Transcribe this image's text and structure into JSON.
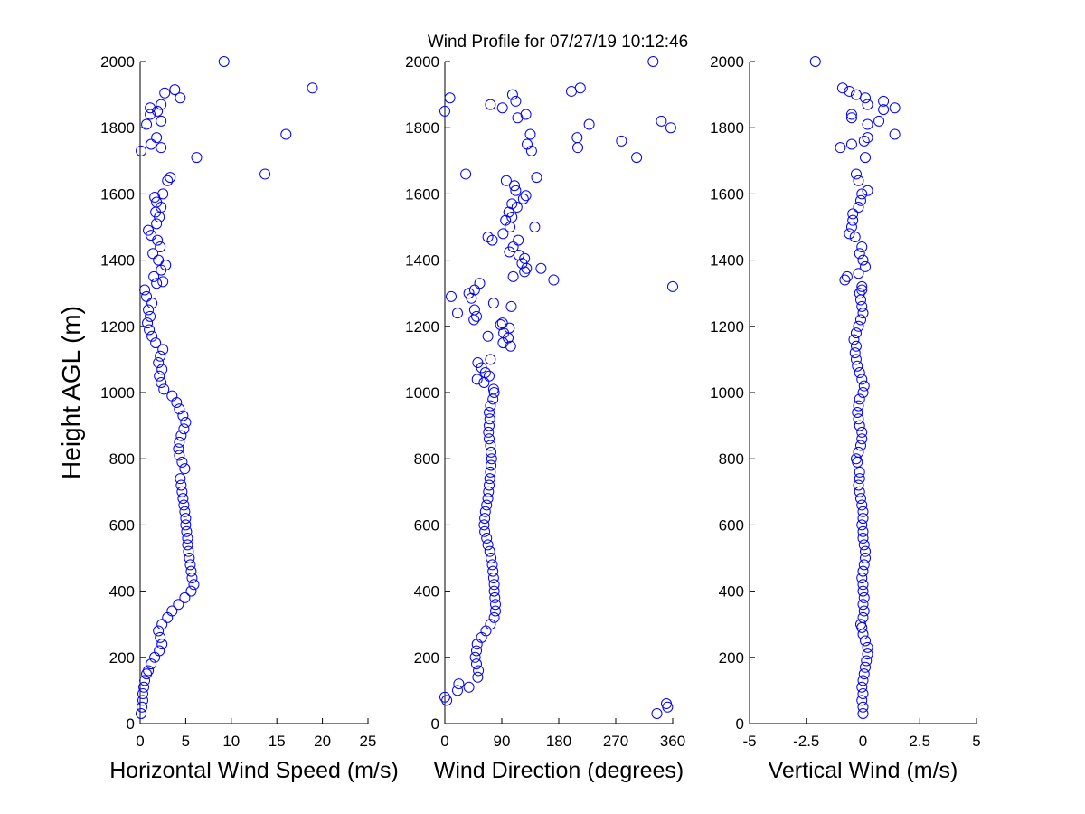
{
  "title": "Wind Profile for  07/27/19 10:12:46",
  "ylabel": "Height AGL (m)",
  "marker_color": "#0000ff",
  "chart_data": [
    {
      "type": "scatter",
      "xlabel": "Horizontal Wind Speed (m/s)",
      "ylabel": "Height AGL (m)",
      "xlim": [
        0,
        25
      ],
      "ylim": [
        0,
        2000
      ],
      "xticks": [
        "0",
        "5",
        "10",
        "15",
        "20",
        "25"
      ],
      "yticks": [
        "0",
        "200",
        "400",
        "600",
        "800",
        "1000",
        "1200",
        "1400",
        "1600",
        "1800",
        "2000"
      ],
      "grid": false,
      "points": [
        [
          0.1,
          30
        ],
        [
          0.2,
          50
        ],
        [
          0.3,
          70
        ],
        [
          0.3,
          90
        ],
        [
          0.4,
          110
        ],
        [
          0.5,
          130
        ],
        [
          0.7,
          150
        ],
        [
          0.9,
          160
        ],
        [
          1.2,
          180
        ],
        [
          1.6,
          200
        ],
        [
          2.1,
          220
        ],
        [
          2.4,
          240
        ],
        [
          2.2,
          260
        ],
        [
          2.0,
          280
        ],
        [
          2.4,
          300
        ],
        [
          3.0,
          320
        ],
        [
          3.5,
          340
        ],
        [
          4.2,
          360
        ],
        [
          4.9,
          380
        ],
        [
          5.6,
          400
        ],
        [
          5.9,
          420
        ],
        [
          5.7,
          440
        ],
        [
          5.6,
          460
        ],
        [
          5.5,
          480
        ],
        [
          5.4,
          500
        ],
        [
          5.3,
          520
        ],
        [
          5.2,
          540
        ],
        [
          5.2,
          560
        ],
        [
          5.1,
          580
        ],
        [
          5.0,
          600
        ],
        [
          5.0,
          620
        ],
        [
          4.9,
          640
        ],
        [
          4.8,
          660
        ],
        [
          4.7,
          680
        ],
        [
          4.6,
          700
        ],
        [
          4.5,
          720
        ],
        [
          4.4,
          740
        ],
        [
          4.9,
          770
        ],
        [
          4.6,
          790
        ],
        [
          4.3,
          810
        ],
        [
          4.2,
          830
        ],
        [
          4.3,
          850
        ],
        [
          4.5,
          870
        ],
        [
          4.8,
          890
        ],
        [
          5.0,
          910
        ],
        [
          4.7,
          930
        ],
        [
          4.3,
          950
        ],
        [
          4.0,
          970
        ],
        [
          3.5,
          990
        ],
        [
          2.6,
          1010
        ],
        [
          2.3,
          1030
        ],
        [
          2.1,
          1050
        ],
        [
          2.4,
          1070
        ],
        [
          2.0,
          1090
        ],
        [
          2.2,
          1110
        ],
        [
          2.5,
          1130
        ],
        [
          1.7,
          1150
        ],
        [
          1.3,
          1170
        ],
        [
          1.0,
          1190
        ],
        [
          0.8,
          1210
        ],
        [
          1.1,
          1230
        ],
        [
          0.9,
          1250
        ],
        [
          1.3,
          1270
        ],
        [
          0.7,
          1290
        ],
        [
          0.5,
          1310
        ],
        [
          1.8,
          1330
        ],
        [
          2.5,
          1335
        ],
        [
          1.5,
          1350
        ],
        [
          2.3,
          1370
        ],
        [
          2.8,
          1385
        ],
        [
          2.0,
          1400
        ],
        [
          1.4,
          1420
        ],
        [
          2.2,
          1440
        ],
        [
          1.9,
          1460
        ],
        [
          1.2,
          1475
        ],
        [
          0.9,
          1490
        ],
        [
          1.8,
          1510
        ],
        [
          2.1,
          1530
        ],
        [
          1.7,
          1545
        ],
        [
          2.3,
          1560
        ],
        [
          1.8,
          1575
        ],
        [
          1.6,
          1590
        ],
        [
          2.5,
          1600
        ],
        [
          3.0,
          1640
        ],
        [
          3.3,
          1650
        ],
        [
          13.7,
          1660
        ],
        [
          6.2,
          1710
        ],
        [
          0.1,
          1730
        ],
        [
          2.3,
          1740
        ],
        [
          1.2,
          1750
        ],
        [
          1.8,
          1770
        ],
        [
          16.0,
          1780
        ],
        [
          0.7,
          1810
        ],
        [
          2.3,
          1820
        ],
        [
          1.1,
          1840
        ],
        [
          1.9,
          1850
        ],
        [
          1.1,
          1860
        ],
        [
          2.3,
          1870
        ],
        [
          4.4,
          1890
        ],
        [
          2.7,
          1905
        ],
        [
          3.8,
          1915
        ],
        [
          18.9,
          1920
        ],
        [
          9.2,
          2000
        ]
      ]
    },
    {
      "type": "scatter",
      "xlabel": "Wind Direction (degrees)",
      "ylabel": "",
      "xlim": [
        0,
        360
      ],
      "ylim": [
        0,
        2000
      ],
      "xticks": [
        "0",
        "90",
        "180",
        "270",
        "360"
      ],
      "yticks": [
        "0",
        "200",
        "400",
        "600",
        "800",
        "1000",
        "1200",
        "1400",
        "1600",
        "1800",
        "2000"
      ],
      "grid": false,
      "points": [
        [
          335,
          30
        ],
        [
          352,
          50
        ],
        [
          350,
          60
        ],
        [
          3,
          70
        ],
        [
          0,
          80
        ],
        [
          20,
          100
        ],
        [
          38,
          110
        ],
        [
          22,
          120
        ],
        [
          52,
          140
        ],
        [
          53,
          160
        ],
        [
          50,
          180
        ],
        [
          48,
          200
        ],
        [
          50,
          220
        ],
        [
          51,
          240
        ],
        [
          58,
          260
        ],
        [
          65,
          280
        ],
        [
          72,
          300
        ],
        [
          78,
          320
        ],
        [
          80,
          340
        ],
        [
          80,
          360
        ],
        [
          79,
          380
        ],
        [
          78,
          400
        ],
        [
          78,
          420
        ],
        [
          77,
          440
        ],
        [
          76,
          460
        ],
        [
          75,
          480
        ],
        [
          73,
          500
        ],
        [
          71,
          520
        ],
        [
          68,
          540
        ],
        [
          66,
          560
        ],
        [
          63,
          580
        ],
        [
          62,
          600
        ],
        [
          63,
          620
        ],
        [
          64,
          640
        ],
        [
          66,
          660
        ],
        [
          68,
          680
        ],
        [
          69,
          700
        ],
        [
          70,
          720
        ],
        [
          71,
          740
        ],
        [
          72,
          760
        ],
        [
          73,
          780
        ],
        [
          74,
          800
        ],
        [
          73,
          820
        ],
        [
          72,
          840
        ],
        [
          70,
          860
        ],
        [
          69,
          880
        ],
        [
          70,
          900
        ],
        [
          71,
          920
        ],
        [
          70,
          940
        ],
        [
          72,
          960
        ],
        [
          76,
          980
        ],
        [
          78,
          1000
        ],
        [
          77,
          1010
        ],
        [
          62,
          1030
        ],
        [
          51,
          1040
        ],
        [
          70,
          1050
        ],
        [
          64,
          1060
        ],
        [
          58,
          1075
        ],
        [
          52,
          1090
        ],
        [
          72,
          1100
        ],
        [
          104,
          1140
        ],
        [
          92,
          1150
        ],
        [
          100,
          1165
        ],
        [
          68,
          1170
        ],
        [
          93,
          1180
        ],
        [
          102,
          1195
        ],
        [
          88,
          1205
        ],
        [
          91,
          1210
        ],
        [
          46,
          1220
        ],
        [
          50,
          1230
        ],
        [
          20,
          1240
        ],
        [
          47,
          1250
        ],
        [
          105,
          1260
        ],
        [
          77,
          1270
        ],
        [
          42,
          1285
        ],
        [
          10,
          1290
        ],
        [
          38,
          1300
        ],
        [
          47,
          1310
        ],
        [
          55,
          1330
        ],
        [
          360,
          1320
        ],
        [
          172,
          1340
        ],
        [
          108,
          1350
        ],
        [
          126,
          1365
        ],
        [
          129,
          1375
        ],
        [
          152,
          1375
        ],
        [
          122,
          1390
        ],
        [
          126,
          1405
        ],
        [
          117,
          1415
        ],
        [
          102,
          1425
        ],
        [
          108,
          1440
        ],
        [
          75,
          1460
        ],
        [
          68,
          1470
        ],
        [
          116,
          1460
        ],
        [
          92,
          1480
        ],
        [
          103,
          1500
        ],
        [
          142,
          1500
        ],
        [
          96,
          1520
        ],
        [
          106,
          1530
        ],
        [
          101,
          1545
        ],
        [
          114,
          1560
        ],
        [
          106,
          1570
        ],
        [
          124,
          1585
        ],
        [
          128,
          1595
        ],
        [
          112,
          1610
        ],
        [
          110,
          1625
        ],
        [
          97,
          1640
        ],
        [
          145,
          1650
        ],
        [
          33,
          1660
        ],
        [
          303,
          1710
        ],
        [
          210,
          1740
        ],
        [
          137,
          1730
        ],
        [
          130,
          1750
        ],
        [
          209,
          1770
        ],
        [
          279,
          1760
        ],
        [
          135,
          1780
        ],
        [
          357,
          1800
        ],
        [
          228,
          1810
        ],
        [
          342,
          1820
        ],
        [
          115,
          1830
        ],
        [
          0,
          1850
        ],
        [
          128,
          1840
        ],
        [
          91,
          1860
        ],
        [
          72,
          1870
        ],
        [
          112,
          1880
        ],
        [
          8,
          1890
        ],
        [
          107,
          1900
        ],
        [
          200,
          1910
        ],
        [
          214,
          1920
        ],
        [
          329,
          2000
        ]
      ]
    },
    {
      "type": "scatter",
      "xlabel": "Vertical Wind (m/s)",
      "ylabel": "",
      "xlim": [
        -5,
        5
      ],
      "ylim": [
        0,
        2000
      ],
      "xticks": [
        "-5",
        "-2.5",
        "0",
        "2.5",
        "5"
      ],
      "yticks": [
        "0",
        "200",
        "400",
        "600",
        "800",
        "1000",
        "1200",
        "1400",
        "1600",
        "1800",
        "2000"
      ],
      "grid": false,
      "points": [
        [
          0.0,
          30
        ],
        [
          0.0,
          50
        ],
        [
          -0.05,
          70
        ],
        [
          0.0,
          90
        ],
        [
          -0.05,
          110
        ],
        [
          0.0,
          130
        ],
        [
          0.05,
          150
        ],
        [
          0.1,
          170
        ],
        [
          0.15,
          190
        ],
        [
          0.2,
          210
        ],
        [
          0.2,
          230
        ],
        [
          0.1,
          250
        ],
        [
          0.0,
          270
        ],
        [
          -0.05,
          290
        ],
        [
          -0.1,
          300
        ],
        [
          0.0,
          320
        ],
        [
          0.05,
          340
        ],
        [
          0.0,
          360
        ],
        [
          0.05,
          380
        ],
        [
          0.0,
          400
        ],
        [
          0.0,
          420
        ],
        [
          -0.05,
          440
        ],
        [
          0.0,
          460
        ],
        [
          0.05,
          480
        ],
        [
          0.1,
          500
        ],
        [
          0.1,
          520
        ],
        [
          0.05,
          540
        ],
        [
          0.0,
          560
        ],
        [
          0.0,
          580
        ],
        [
          -0.05,
          600
        ],
        [
          0.0,
          620
        ],
        [
          0.0,
          640
        ],
        [
          -0.05,
          660
        ],
        [
          -0.1,
          680
        ],
        [
          -0.15,
          700
        ],
        [
          -0.2,
          720
        ],
        [
          -0.15,
          740
        ],
        [
          -0.15,
          760
        ],
        [
          -0.25,
          790
        ],
        [
          -0.3,
          800
        ],
        [
          -0.2,
          820
        ],
        [
          -0.1,
          840
        ],
        [
          -0.05,
          860
        ],
        [
          -0.05,
          880
        ],
        [
          -0.15,
          900
        ],
        [
          -0.2,
          920
        ],
        [
          -0.25,
          940
        ],
        [
          -0.2,
          960
        ],
        [
          -0.15,
          980
        ],
        [
          0.0,
          1000
        ],
        [
          0.05,
          1020
        ],
        [
          -0.05,
          1040
        ],
        [
          -0.15,
          1060
        ],
        [
          -0.25,
          1080
        ],
        [
          -0.3,
          1100
        ],
        [
          -0.35,
          1120
        ],
        [
          -0.3,
          1140
        ],
        [
          -0.4,
          1160
        ],
        [
          -0.3,
          1180
        ],
        [
          -0.2,
          1200
        ],
        [
          -0.1,
          1220
        ],
        [
          0.0,
          1240
        ],
        [
          -0.05,
          1260
        ],
        [
          -0.1,
          1280
        ],
        [
          -0.15,
          1300
        ],
        [
          -0.05,
          1310
        ],
        [
          -0.05,
          1320
        ],
        [
          -0.8,
          1340
        ],
        [
          -0.7,
          1350
        ],
        [
          -0.2,
          1360
        ],
        [
          0.1,
          1380
        ],
        [
          0.0,
          1400
        ],
        [
          -0.15,
          1420
        ],
        [
          -0.05,
          1440
        ],
        [
          -0.35,
          1470
        ],
        [
          -0.6,
          1480
        ],
        [
          -0.5,
          1500
        ],
        [
          -0.45,
          1520
        ],
        [
          -0.45,
          1540
        ],
        [
          -0.2,
          1560
        ],
        [
          -0.1,
          1580
        ],
        [
          -0.05,
          1600
        ],
        [
          0.2,
          1610
        ],
        [
          -0.2,
          1640
        ],
        [
          -0.3,
          1660
        ],
        [
          0.1,
          1710
        ],
        [
          -1.0,
          1740
        ],
        [
          0.05,
          1760
        ],
        [
          -0.5,
          1750
        ],
        [
          0.2,
          1770
        ],
        [
          1.4,
          1780
        ],
        [
          0.2,
          1810
        ],
        [
          -0.5,
          1830
        ],
        [
          0.7,
          1820
        ],
        [
          -0.5,
          1840
        ],
        [
          1.4,
          1860
        ],
        [
          0.9,
          1855
        ],
        [
          0.9,
          1880
        ],
        [
          0.2,
          1870
        ],
        [
          0.1,
          1890
        ],
        [
          -0.3,
          1900
        ],
        [
          -0.6,
          1910
        ],
        [
          -0.9,
          1920
        ],
        [
          -2.1,
          2000
        ]
      ]
    }
  ]
}
